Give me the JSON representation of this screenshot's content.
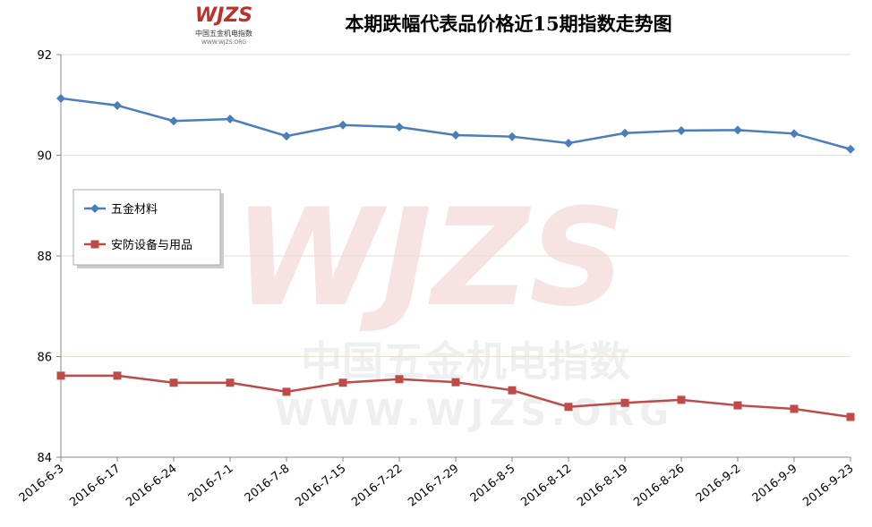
{
  "chart_data": {
    "type": "line",
    "title": "本期跌幅代表品价格近15期指数走势图",
    "logo": {
      "mark": "WJZS",
      "name": "中国五金机电指数",
      "url": "WWW.WJZS.ORG"
    },
    "watermark": {
      "mark": "WJZS",
      "name": "中国五金机电指数",
      "url": "WWW.WJZS.ORG"
    },
    "categories": [
      "2016-6-3",
      "2016-6-17",
      "2016-6-24",
      "2016-7-1",
      "2016-7-8",
      "2016-7-15",
      "2016-7-22",
      "2016-7-29",
      "2016-8-5",
      "2016-8-12",
      "2016-8-19",
      "2016-8-26",
      "2016-9-2",
      "2016-9-9",
      "2016-9-23"
    ],
    "series": [
      {
        "name": "五金材料",
        "color": "#4a7ebb",
        "marker": "diamond",
        "values": [
          91.13,
          90.99,
          90.68,
          90.72,
          90.38,
          90.6,
          90.56,
          90.4,
          90.37,
          90.24,
          90.44,
          90.49,
          90.5,
          90.43,
          90.12
        ]
      },
      {
        "name": "安防设备与用品",
        "color": "#be4b48",
        "marker": "square",
        "values": [
          85.62,
          85.62,
          85.48,
          85.48,
          85.3,
          85.48,
          85.55,
          85.49,
          85.33,
          85.0,
          85.08,
          85.14,
          85.03,
          84.96,
          84.8
        ]
      }
    ],
    "ylim": [
      84,
      92
    ],
    "yticks": [
      84,
      86,
      88,
      90,
      92
    ],
    "grid": true,
    "legend": "left"
  }
}
